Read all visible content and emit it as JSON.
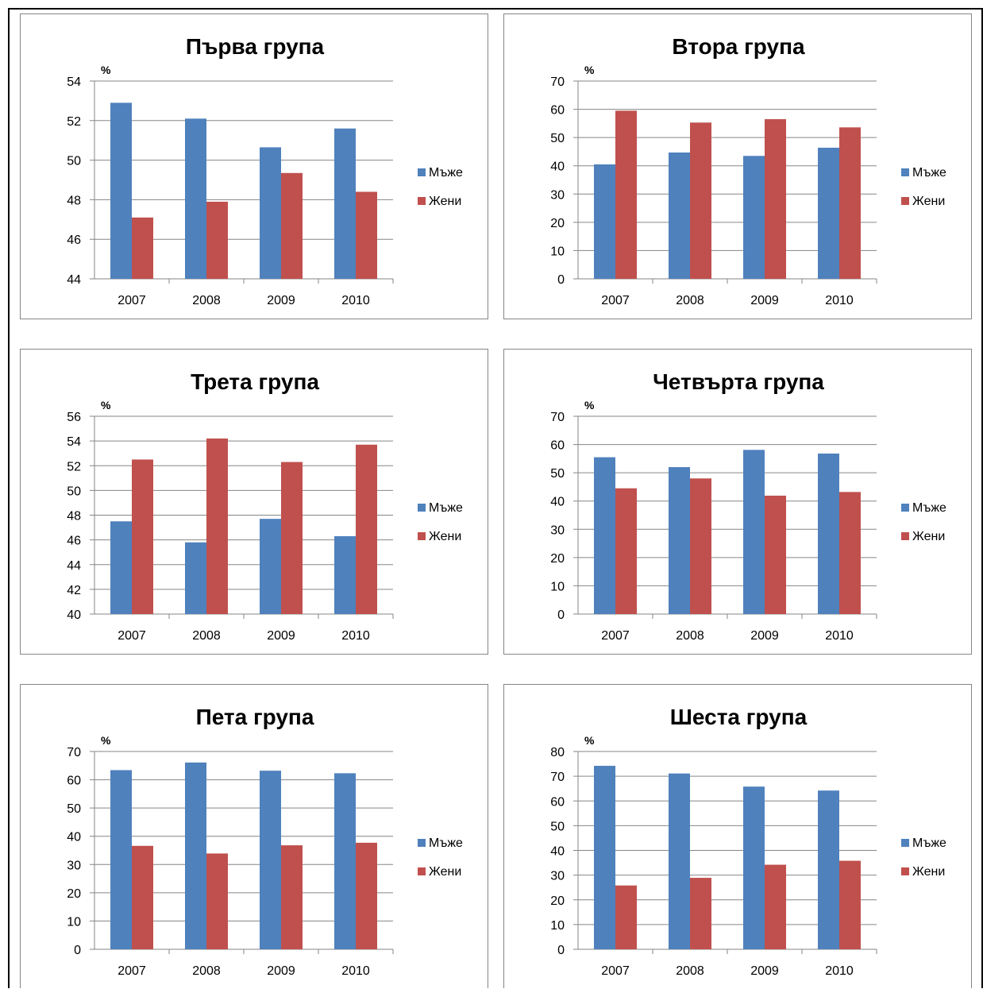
{
  "legend_labels": [
    "Мъже",
    "Жени"
  ],
  "colors": {
    "men": "#4F81BD",
    "women": "#C0504D",
    "grid": "#868686",
    "axis": "#868686",
    "text": "#000000"
  },
  "chart_data": [
    {
      "type": "bar",
      "title": "Първа група",
      "ylabel": "%",
      "categories": [
        "2007",
        "2008",
        "2009",
        "2010"
      ],
      "ylim": [
        44,
        54
      ],
      "yticks": [
        44,
        46,
        48,
        50,
        52,
        54
      ],
      "grid": true,
      "legend": "right",
      "series": [
        {
          "name": "Мъже",
          "values": [
            52.9,
            52.1,
            50.65,
            51.6
          ]
        },
        {
          "name": "Жени",
          "values": [
            47.1,
            47.9,
            49.35,
            48.4
          ]
        }
      ]
    },
    {
      "type": "bar",
      "title": "Втора група",
      "ylabel": "%",
      "categories": [
        "2007",
        "2008",
        "2009",
        "2010"
      ],
      "ylim": [
        0,
        70
      ],
      "yticks": [
        0,
        10,
        20,
        30,
        40,
        50,
        60,
        70
      ],
      "grid": true,
      "legend": "right",
      "series": [
        {
          "name": "Мъже",
          "values": [
            40.5,
            44.7,
            43.5,
            46.4
          ]
        },
        {
          "name": "Жени",
          "values": [
            59.5,
            55.3,
            56.5,
            53.6
          ]
        }
      ]
    },
    {
      "type": "bar",
      "title": "Трета група",
      "ylabel": "%",
      "categories": [
        "2007",
        "2008",
        "2009",
        "2010"
      ],
      "ylim": [
        40,
        56
      ],
      "yticks": [
        40,
        42,
        44,
        46,
        48,
        50,
        52,
        54,
        56
      ],
      "grid": true,
      "legend": "right",
      "series": [
        {
          "name": "Мъже",
          "values": [
            47.5,
            45.8,
            47.7,
            46.3
          ]
        },
        {
          "name": "Жени",
          "values": [
            52.5,
            54.2,
            52.3,
            53.7
          ]
        }
      ]
    },
    {
      "type": "bar",
      "title": "Четвърта група",
      "ylabel": "%",
      "categories": [
        "2007",
        "2008",
        "2009",
        "2010"
      ],
      "ylim": [
        0,
        70
      ],
      "yticks": [
        0,
        10,
        20,
        30,
        40,
        50,
        60,
        70
      ],
      "grid": true,
      "legend": "right",
      "series": [
        {
          "name": "Мъже",
          "values": [
            55.5,
            52.0,
            58.1,
            56.8
          ]
        },
        {
          "name": "Жени",
          "values": [
            44.5,
            48.0,
            41.9,
            43.2
          ]
        }
      ]
    },
    {
      "type": "bar",
      "title": "Пета група",
      "ylabel": "%",
      "categories": [
        "2007",
        "2008",
        "2009",
        "2010"
      ],
      "ylim": [
        0,
        70
      ],
      "yticks": [
        0,
        10,
        20,
        30,
        40,
        50,
        60,
        70
      ],
      "grid": true,
      "legend": "right",
      "series": [
        {
          "name": "Мъже",
          "values": [
            63.4,
            66.1,
            63.2,
            62.3
          ]
        },
        {
          "name": "Жени",
          "values": [
            36.6,
            33.9,
            36.8,
            37.7
          ]
        }
      ]
    },
    {
      "type": "bar",
      "title": "Шеста група",
      "ylabel": "%",
      "categories": [
        "2007",
        "2008",
        "2009",
        "2010"
      ],
      "ylim": [
        0,
        80
      ],
      "yticks": [
        0,
        10,
        20,
        30,
        40,
        50,
        60,
        70,
        80
      ],
      "grid": true,
      "legend": "right",
      "series": [
        {
          "name": "Мъже",
          "values": [
            74.2,
            71.1,
            65.8,
            64.2
          ]
        },
        {
          "name": "Жени",
          "values": [
            25.8,
            28.9,
            34.2,
            35.8
          ]
        }
      ]
    }
  ]
}
